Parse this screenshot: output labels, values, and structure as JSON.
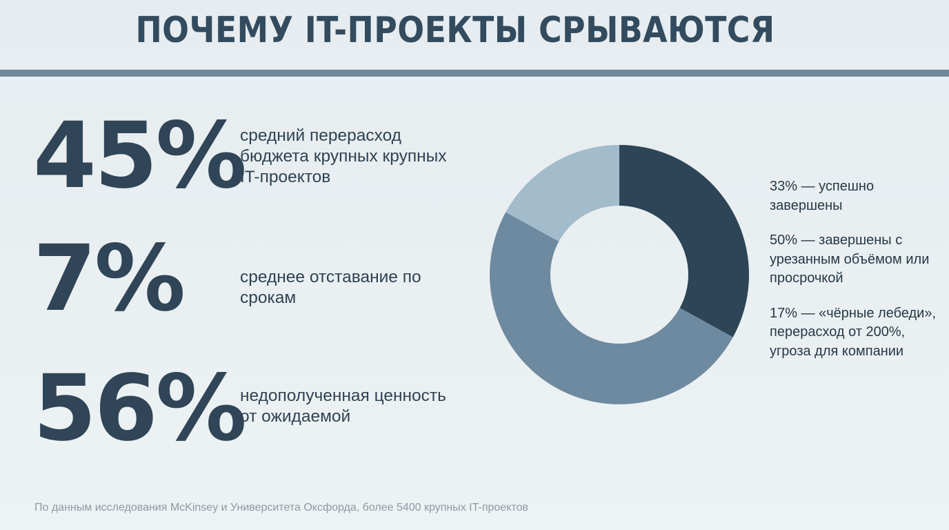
{
  "title": "ПОЧЕМУ IT-ПРОЕКТЫ СРЫВАЮТСЯ",
  "stats": [
    {
      "value": "45%",
      "label": "средний перерасход бюджета крупных крупных IT-проектов"
    },
    {
      "value": "7%",
      "label": "среднее отставание по срокам"
    },
    {
      "value": "56%",
      "label": "недополученная ценность от ожидаемой"
    }
  ],
  "legend": [
    "33% — успешно завершены",
    "50% — завершены с урезанным объёмом или просрочкой",
    "17% — «чёрные лебеди», перерасход от 200%, угроза для компании"
  ],
  "footnote": "По данным исследования McKinsey и Университета Оксфорда, более 5400 крупных IT-проектов",
  "colors": {
    "background": "#e8eef1",
    "accent_rule": "#6d8799",
    "dark_text": "#304557",
    "slice_success": "#2d4556",
    "slice_partial": "#6e8aa0",
    "slice_black_swan": "#a3bccb"
  },
  "chart_data": {
    "type": "pie",
    "style": "donut",
    "categories": [
      "33% — успешно завершены",
      "50% — завершены с урезанным объёмом или просрочкой",
      "17% — «чёрные лебеди», перерасход от 200%, угроза для компании"
    ],
    "values": [
      33,
      50,
      17
    ],
    "colors": [
      "#2d4556",
      "#6e8aa0",
      "#a3bccb"
    ],
    "legend_position": "right"
  }
}
